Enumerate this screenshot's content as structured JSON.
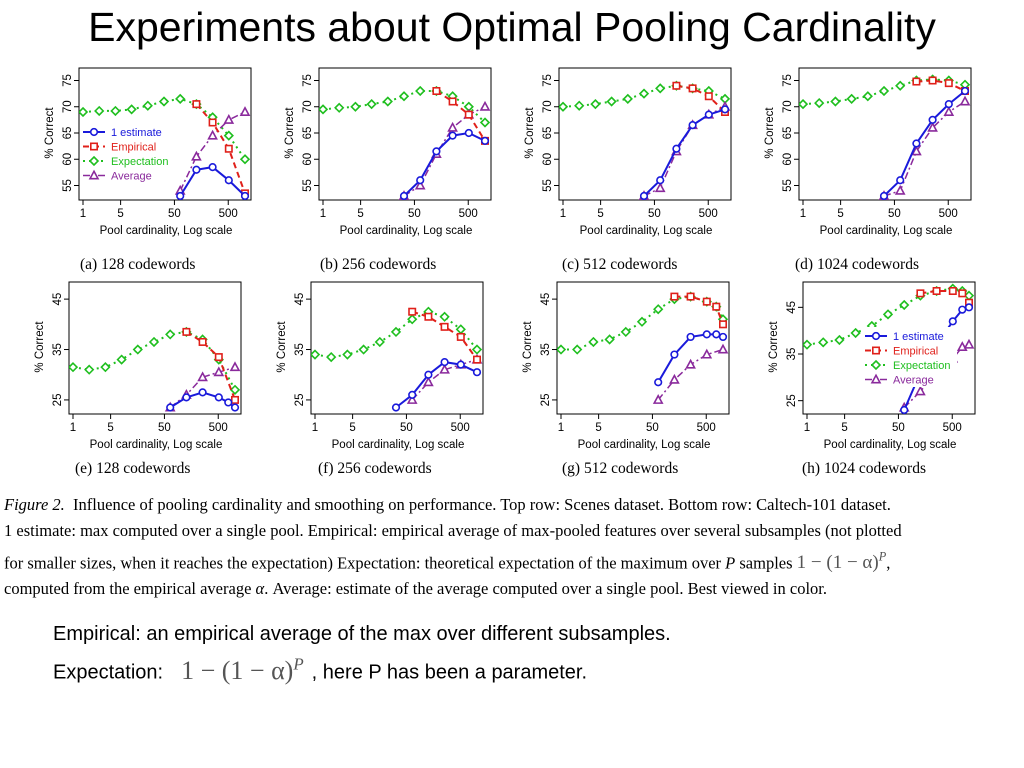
{
  "slide": {
    "title": "Experiments about Optimal Pooling Cardinality"
  },
  "colors": {
    "estimate": "#1a1adb",
    "empirical": "#e0201a",
    "expectation": "#1fbf1f",
    "average": "#8a2a9c"
  },
  "chart_data": [
    {
      "type": "line",
      "panel": "a",
      "caption": "(a) 128 codewords",
      "xlabel": "Pool cardinality, Log scale",
      "ylabel": "% Correct",
      "xscale": "log",
      "xlim": [
        1,
        1024
      ],
      "ylim": [
        53,
        77
      ],
      "xticks": [
        1,
        5,
        50,
        500
      ],
      "yticks": [
        55,
        60,
        65,
        70,
        75
      ],
      "legend": {
        "position": "left-center",
        "entries": [
          "1 estimate",
          "Empirical",
          "Expectation",
          "Average"
        ]
      },
      "series": [
        {
          "name": "1 estimate",
          "x": [
            64,
            128,
            256,
            512,
            1024
          ],
          "y": [
            53,
            58,
            58.5,
            56,
            53
          ]
        },
        {
          "name": "Empirical",
          "x": [
            128,
            256,
            512,
            1024
          ],
          "y": [
            70.5,
            67,
            62,
            53.5
          ]
        },
        {
          "name": "Expectation",
          "x": [
            1,
            2,
            4,
            8,
            16,
            32,
            64,
            128,
            256,
            512,
            1024
          ],
          "y": [
            69,
            69.2,
            69.2,
            69.5,
            70.2,
            71,
            71.5,
            70.5,
            68,
            64.5,
            60
          ]
        },
        {
          "name": "Average",
          "x": [
            64,
            128,
            256,
            512,
            1024
          ],
          "y": [
            54,
            60.5,
            64.5,
            67.5,
            69
          ]
        }
      ]
    },
    {
      "type": "line",
      "panel": "b",
      "caption": "(b) 256 codewords",
      "xlabel": "Pool cardinality, Log scale",
      "ylabel": "% Correct",
      "xscale": "log",
      "xlim": [
        1,
        1024
      ],
      "ylim": [
        53,
        77
      ],
      "xticks": [
        1,
        5,
        50,
        500
      ],
      "yticks": [
        55,
        60,
        65,
        70,
        75
      ],
      "series": [
        {
          "name": "1 estimate",
          "x": [
            32,
            64,
            128,
            256,
            512,
            1024
          ],
          "y": [
            53,
            56,
            61.5,
            64.5,
            65,
            63.5
          ]
        },
        {
          "name": "Empirical",
          "x": [
            128,
            256,
            512,
            1024
          ],
          "y": [
            73,
            71,
            68.5,
            63.5
          ]
        },
        {
          "name": "Expectation",
          "x": [
            1,
            2,
            4,
            8,
            16,
            32,
            64,
            128,
            256,
            512,
            1024
          ],
          "y": [
            69.5,
            69.8,
            70,
            70.5,
            71,
            72,
            73,
            73,
            72,
            70,
            67
          ]
        },
        {
          "name": "Average",
          "x": [
            32,
            64,
            128,
            256,
            512,
            1024
          ],
          "y": [
            53,
            55,
            61,
            66,
            68.5,
            70
          ]
        }
      ]
    },
    {
      "type": "line",
      "panel": "c",
      "caption": "(c) 512 codewords",
      "xlabel": "Pool cardinality, Log scale",
      "ylabel": "% Correct",
      "xscale": "log",
      "xlim": [
        1,
        1024
      ],
      "ylim": [
        53,
        77
      ],
      "xticks": [
        1,
        5,
        50,
        500
      ],
      "yticks": [
        55,
        60,
        65,
        70,
        75
      ],
      "series": [
        {
          "name": "1 estimate",
          "x": [
            32,
            64,
            128,
            256,
            512,
            1024
          ],
          "y": [
            53,
            56,
            62,
            66.5,
            68.5,
            69.5
          ]
        },
        {
          "name": "Empirical",
          "x": [
            128,
            256,
            512,
            1024
          ],
          "y": [
            74,
            73.5,
            72,
            69
          ]
        },
        {
          "name": "Expectation",
          "x": [
            1,
            2,
            4,
            8,
            16,
            32,
            64,
            128,
            256,
            512,
            1024
          ],
          "y": [
            70,
            70.2,
            70.5,
            71,
            71.5,
            72.5,
            73.5,
            74,
            73.5,
            73,
            71.5
          ]
        },
        {
          "name": "Average",
          "x": [
            32,
            64,
            128,
            256,
            512,
            1024
          ],
          "y": [
            53,
            54.5,
            61.5,
            66.5,
            68.5,
            70
          ]
        }
      ]
    },
    {
      "type": "line",
      "panel": "d",
      "caption": "(d) 1024 codewords",
      "xlabel": "Pool cardinality, Log scale",
      "ylabel": "% Correct",
      "xscale": "log",
      "xlim": [
        1,
        1024
      ],
      "ylim": [
        53,
        77
      ],
      "xticks": [
        1,
        5,
        50,
        500
      ],
      "yticks": [
        55,
        60,
        65,
        70,
        75
      ],
      "series": [
        {
          "name": "1 estimate",
          "x": [
            32,
            64,
            128,
            256,
            512,
            1024
          ],
          "y": [
            53,
            56,
            63,
            67.5,
            70.5,
            73
          ]
        },
        {
          "name": "Empirical",
          "x": [
            128,
            256,
            512,
            1024
          ],
          "y": [
            74.8,
            75,
            74.5,
            73
          ]
        },
        {
          "name": "Expectation",
          "x": [
            1,
            2,
            4,
            8,
            16,
            32,
            64,
            128,
            256,
            512,
            1024
          ],
          "y": [
            70.5,
            70.7,
            71,
            71.5,
            72,
            73,
            74,
            75,
            75.2,
            75,
            74.2
          ]
        },
        {
          "name": "Average",
          "x": [
            32,
            64,
            128,
            256,
            512,
            1024
          ],
          "y": [
            53,
            54,
            61.5,
            66,
            69,
            71
          ]
        }
      ]
    },
    {
      "type": "line",
      "panel": "e",
      "caption": "(e) 128 codewords",
      "xlabel": "Pool cardinality, Log scale",
      "ylabel": "% Correct",
      "xscale": "log",
      "xlim": [
        1,
        1024
      ],
      "ylim": [
        23,
        48
      ],
      "xticks": [
        1,
        5,
        50,
        500
      ],
      "yticks": [
        25,
        35,
        45
      ],
      "series": [
        {
          "name": "1 estimate",
          "x": [
            64,
            128,
            256,
            512,
            768,
            1024
          ],
          "y": [
            23.5,
            25.5,
            26.5,
            25.5,
            24.5,
            23.5
          ]
        },
        {
          "name": "Empirical",
          "x": [
            128,
            256,
            512,
            1024
          ],
          "y": [
            38.5,
            36.5,
            33.5,
            25
          ]
        },
        {
          "name": "Expectation",
          "x": [
            1,
            2,
            4,
            8,
            16,
            32,
            64,
            128,
            256,
            512,
            1024
          ],
          "y": [
            31.5,
            31,
            31.5,
            33,
            35,
            36.5,
            38,
            38.5,
            37,
            33,
            27
          ]
        },
        {
          "name": "Average",
          "x": [
            64,
            128,
            256,
            512,
            1024
          ],
          "y": [
            23.5,
            26,
            29.5,
            30.5,
            31.5
          ]
        }
      ]
    },
    {
      "type": "line",
      "panel": "f",
      "caption": "(f) 256 codewords",
      "xlabel": "Pool cardinality, Log scale",
      "ylabel": "% Correct",
      "xscale": "log",
      "xlim": [
        1,
        1024
      ],
      "ylim": [
        23,
        48
      ],
      "xticks": [
        1,
        5,
        50,
        500
      ],
      "yticks": [
        25,
        35,
        45
      ],
      "series": [
        {
          "name": "1 estimate",
          "x": [
            32,
            64,
            128,
            256,
            512,
            1024
          ],
          "y": [
            23.5,
            26,
            30,
            32.5,
            32,
            30.5
          ]
        },
        {
          "name": "Empirical",
          "x": [
            64,
            128,
            256,
            512,
            1024
          ],
          "y": [
            42.5,
            41.5,
            39.5,
            37.5,
            33
          ]
        },
        {
          "name": "Expectation",
          "x": [
            1,
            2,
            4,
            8,
            16,
            32,
            64,
            128,
            256,
            512,
            1024
          ],
          "y": [
            34,
            33.5,
            34,
            35,
            36.5,
            38.5,
            41,
            42.5,
            41.5,
            39,
            35
          ]
        },
        {
          "name": "Average",
          "x": [
            64,
            128,
            256,
            512,
            1024
          ],
          "y": [
            25,
            28.5,
            31,
            32,
            33
          ]
        }
      ]
    },
    {
      "type": "line",
      "panel": "g",
      "caption": "(g) 512 codewords",
      "xlabel": "Pool cardinality, Log scale",
      "ylabel": "% Correct",
      "xscale": "log",
      "xlim": [
        1,
        1024
      ],
      "ylim": [
        23,
        48
      ],
      "xticks": [
        1,
        5,
        50,
        500
      ],
      "yticks": [
        25,
        35,
        45
      ],
      "series": [
        {
          "name": "1 estimate",
          "x": [
            64,
            128,
            256,
            512,
            768,
            1024
          ],
          "y": [
            28.5,
            34,
            37.5,
            38,
            38,
            37.5
          ]
        },
        {
          "name": "Empirical",
          "x": [
            128,
            256,
            512,
            768,
            1024
          ],
          "y": [
            45.5,
            45.5,
            44.5,
            43.5,
            40
          ]
        },
        {
          "name": "Expectation",
          "x": [
            1,
            2,
            4,
            8,
            16,
            32,
            64,
            128,
            256,
            512,
            768,
            1024
          ],
          "y": [
            35,
            35,
            36.5,
            37,
            38.5,
            40.5,
            43,
            45,
            45.5,
            44.5,
            43.5,
            41
          ]
        },
        {
          "name": "Average",
          "x": [
            64,
            128,
            256,
            512,
            1024
          ],
          "y": [
            25,
            29,
            32,
            34,
            35
          ]
        }
      ]
    },
    {
      "type": "line",
      "panel": "h",
      "caption": "(h) 1024 codewords",
      "xlabel": "Pool cardinality, Log scale",
      "ylabel": "% Correct",
      "xscale": "log",
      "xlim": [
        1,
        1024
      ],
      "ylim": [
        23,
        50
      ],
      "xticks": [
        1,
        5,
        50,
        500
      ],
      "yticks": [
        25,
        35,
        45
      ],
      "legend": {
        "position": "right-center",
        "entries": [
          "1 estimate",
          "Empirical",
          "Expectation",
          "Average"
        ]
      },
      "series": [
        {
          "name": "1 estimate",
          "x": [
            64,
            128,
            256,
            512,
            768,
            1024
          ],
          "y": [
            23,
            31,
            37,
            42,
            44.5,
            45
          ]
        },
        {
          "name": "Empirical",
          "x": [
            128,
            256,
            512,
            768,
            1024
          ],
          "y": [
            48,
            48.5,
            48.5,
            48,
            46
          ]
        },
        {
          "name": "Expectation",
          "x": [
            1,
            2,
            4,
            8,
            16,
            32,
            64,
            128,
            256,
            512,
            768,
            1024
          ],
          "y": [
            37,
            37.5,
            38,
            39.5,
            41,
            43.5,
            45.5,
            47.5,
            48.5,
            49,
            48.5,
            47.5
          ]
        },
        {
          "name": "Average",
          "x": [
            64,
            128,
            256,
            512,
            768,
            1024
          ],
          "y": [
            23.5,
            27,
            31,
            34,
            36.5,
            37
          ]
        }
      ]
    }
  ],
  "figure_caption": {
    "label": "Figure 2.",
    "line1_rest": "Influence of pooling cardinality and smoothing on performance. Top row: Scenes dataset. Bottom row: Caltech-101 dataset.",
    "line2": "1 estimate: max computed over a single pool. Empirical: empirical average of max-pooled features over several subsamples (not plotted",
    "line3_pre": "for smaller sizes, when it reaches the expectation) Expectation: theoretical expectation of the maximum over",
    "line3_var": "P",
    "line3_mid": "samples",
    "line3_formula": "1 − (1 − α)",
    "line3_exp": "P",
    "line3_end": ",",
    "line4_pre": "computed from the empirical average",
    "line4_var": "α",
    "line4_post": ". Average: estimate of the average computed over a single pool. Best viewed in color."
  },
  "notes": {
    "line1": "Empirical: an empirical average of the max over different subsamples.",
    "line2_label": "Expectation:",
    "line2_formula": "1 − (1 − α)",
    "line2_exp": "P",
    "line2_post": ", here P has been a parameter."
  }
}
